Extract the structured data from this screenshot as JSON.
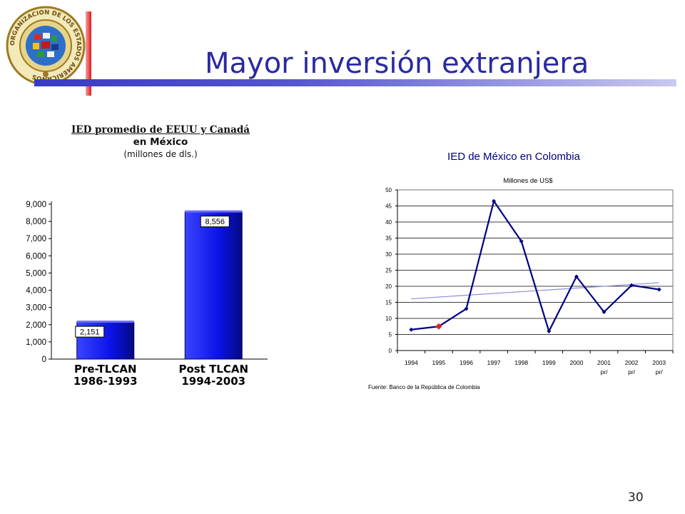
{
  "slide": {
    "title": "Mayor inversión extranjera",
    "page_number": "30",
    "seal_text": "ORGANIZACION DE LOS ESTADOS AMERICANOS"
  },
  "left_chart_title": {
    "line1": "IED promedio de EEUU y Canadá",
    "line2": "en México",
    "line3": "(millones de dls.)"
  },
  "chart_data": [
    {
      "type": "bar",
      "title": "IED promedio de EEUU y Canadá en México (millones de dls.)",
      "categories": [
        [
          "Pre-TLCAN",
          "1986-1993"
        ],
        [
          "Post TLCAN",
          "1994-2003"
        ]
      ],
      "values": [
        2151,
        8556
      ],
      "data_labels": [
        "2,151",
        "8,556"
      ],
      "ylim": [
        0,
        9000
      ],
      "yticks": [
        0,
        1000,
        2000,
        3000,
        4000,
        5000,
        6000,
        7000,
        8000,
        9000
      ],
      "ytick_labels": [
        "0",
        "1,000",
        "2,000",
        "3,000",
        "4,000",
        "5,000",
        "6,000",
        "7,000",
        "8,000",
        "9,000"
      ],
      "colors": {
        "bar": "#0a12e8",
        "bar_dark": "#050a80"
      },
      "grid": false
    },
    {
      "type": "line",
      "title": "IED de México en Colombia",
      "subtitle": "Millones de US$",
      "source": "Fuente: Banco de la República de Colombia",
      "categories": [
        "1994",
        "1995",
        "1996",
        "1997",
        "1998",
        "1999",
        "2000",
        "2001",
        "2002",
        "2003"
      ],
      "category_sublabels": [
        "",
        "",
        "",
        "",
        "",
        "",
        "",
        "pr/",
        "pr/",
        "pr/"
      ],
      "values": [
        6.5,
        7.5,
        13,
        46.5,
        34,
        6,
        23,
        12,
        20.3,
        19
      ],
      "highlight_index": 1,
      "trend": [
        16.1,
        21.1
      ],
      "ylim": [
        0,
        50
      ],
      "yticks": [
        0,
        5,
        10,
        15,
        20,
        25,
        30,
        35,
        40,
        45,
        50
      ],
      "ytick_labels": [
        "0",
        "5",
        "10",
        "15",
        "20",
        "25",
        "30",
        "35",
        "40",
        "45",
        "50"
      ],
      "grid": true,
      "colors": {
        "line": "#000080",
        "highlight": "#e02020",
        "trend": "#8c8ce0",
        "grid": "#000000"
      }
    }
  ]
}
